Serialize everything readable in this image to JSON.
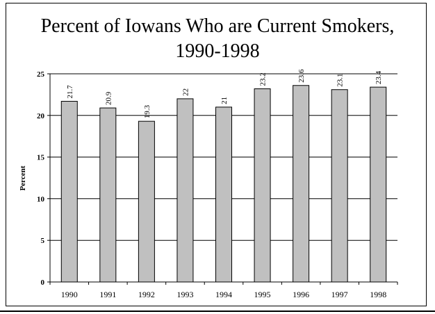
{
  "chart_data": {
    "type": "bar",
    "title": "Percent of Iowans Who are Current Smokers, 1990-1998",
    "xlabel": "",
    "ylabel": "Percent",
    "categories": [
      "1990",
      "1991",
      "1992",
      "1993",
      "1994",
      "1995",
      "1996",
      "1997",
      "1998"
    ],
    "values": [
      21.7,
      20.9,
      19.3,
      22,
      21,
      23.2,
      23.6,
      23.1,
      23.4
    ],
    "data_labels": [
      "21.7",
      "20.9",
      "19.3",
      "22",
      "21",
      "23.2",
      "23.6",
      "23.1",
      "23.4"
    ],
    "ylim": [
      0,
      25
    ],
    "yticks": [
      0,
      5,
      10,
      15,
      20,
      25
    ],
    "grid": true,
    "legend": "none",
    "colors": {
      "bar_fill": "#c0c0c0",
      "bar_stroke": "#000000",
      "gridline": "#000000"
    }
  }
}
